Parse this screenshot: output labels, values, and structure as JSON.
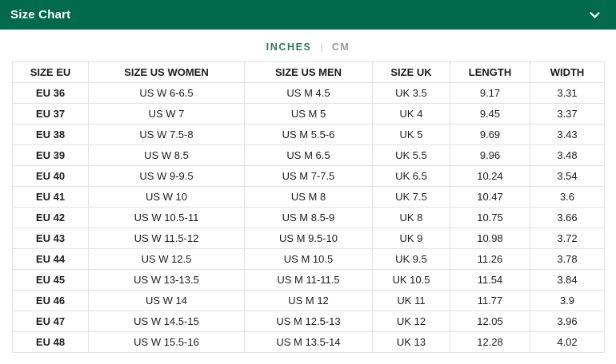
{
  "panel": {
    "title": "Size Chart",
    "collapse_icon": "chevron-down-icon",
    "colors": {
      "header_bar_green": "#016a4b",
      "active_unit_green": "#2e7a58",
      "inactive_unit_gray": "#9b9b9b",
      "table_border_gray": "#e2e2e2"
    }
  },
  "unit_toggle": {
    "active_unit": "INCHES",
    "options": [
      {
        "label": "INCHES",
        "active": true
      },
      {
        "label": "CM",
        "active": false
      }
    ],
    "divider": "|"
  },
  "table": {
    "headers": [
      "SIZE EU",
      "SIZE US WOMEN",
      "SIZE US MEN",
      "SIZE UK",
      "LENGTH",
      "WIDTH"
    ],
    "rows": [
      [
        "EU 36",
        "US W 6-6.5",
        "US M 4.5",
        "UK 3.5",
        "9.17",
        "3.31"
      ],
      [
        "EU 37",
        "US W 7",
        "US M 5",
        "UK 4",
        "9.45",
        "3.37"
      ],
      [
        "EU 38",
        "US W 7.5-8",
        "US M 5.5-6",
        "UK 5",
        "9.69",
        "3.43"
      ],
      [
        "EU 39",
        "US W 8.5",
        "US M 6.5",
        "UK 5.5",
        "9.96",
        "3.48"
      ],
      [
        "EU 40",
        "US W 9-9.5",
        "US M 7-7.5",
        "UK 6.5",
        "10.24",
        "3.54"
      ],
      [
        "EU 41",
        "US W 10",
        "US M 8",
        "UK 7.5",
        "10.47",
        "3.6"
      ],
      [
        "EU 42",
        "US W 10.5-11",
        "US M 8.5-9",
        "UK 8",
        "10.75",
        "3.66"
      ],
      [
        "EU 43",
        "US W 11.5-12",
        "US M 9.5-10",
        "UK 9",
        "10.98",
        "3.72"
      ],
      [
        "EU 44",
        "US W 12.5",
        "US M 10.5",
        "UK 9.5",
        "11.26",
        "3.78"
      ],
      [
        "EU 45",
        "US W 13-13.5",
        "US M 11-11.5",
        "UK 10.5",
        "11.54",
        "3.84"
      ],
      [
        "EU 46",
        "US W 14",
        "US M 12",
        "UK 11",
        "11.77",
        "3.9"
      ],
      [
        "EU 47",
        "US W 14.5-15",
        "US M 12.5-13",
        "UK 12",
        "12.05",
        "3.96"
      ],
      [
        "EU 48",
        "US W 15.5-16",
        "US M 13.5-14",
        "UK 13",
        "12.28",
        "4.02"
      ]
    ],
    "column_keys": [
      "size-eu",
      "size-us-women",
      "size-us-men",
      "size-uk",
      "length",
      "width"
    ]
  }
}
